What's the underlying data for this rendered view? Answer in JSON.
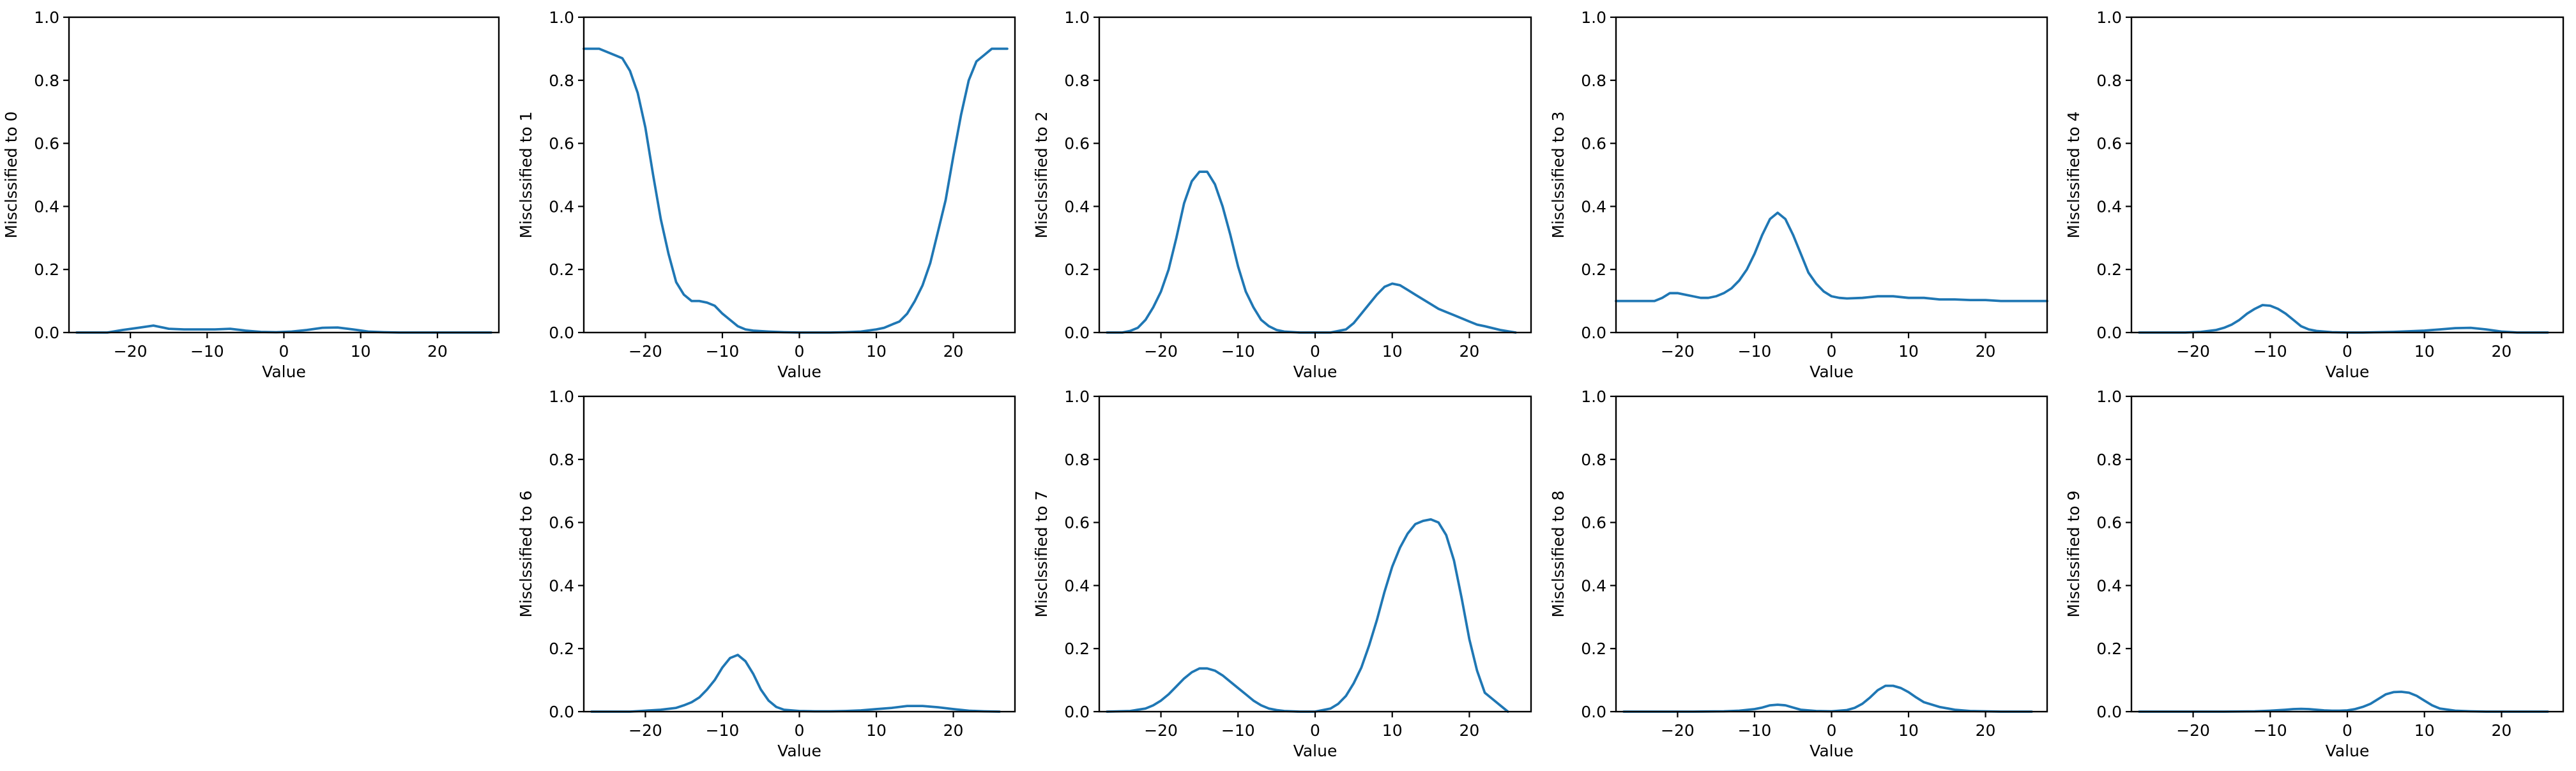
{
  "colors": {
    "series": "#1f77b4",
    "axis": "#000000",
    "background": "#ffffff"
  },
  "chart_data": [
    {
      "type": "line",
      "title": "",
      "xlabel": "Value",
      "ylabel": "Misclssified to 0",
      "xlim": [
        -28,
        28
      ],
      "ylim": [
        0,
        1
      ],
      "x_ticks": [
        -20,
        -10,
        0,
        10,
        20
      ],
      "y_ticks": [
        0.0,
        0.2,
        0.4,
        0.6,
        0.8,
        1.0
      ],
      "grid": false,
      "series": [
        {
          "x": [
            -27,
            -25,
            -23,
            -21,
            -19,
            -17,
            -15,
            -13,
            -11,
            -9,
            -7,
            -5,
            -3,
            -1,
            1,
            3,
            5,
            7,
            9,
            11,
            13,
            15,
            17,
            19,
            21,
            23,
            25,
            27
          ],
          "y": [
            0,
            0,
            0,
            0.008,
            0.015,
            0.022,
            0.012,
            0.01,
            0.01,
            0.01,
            0.012,
            0.006,
            0.002,
            0.001,
            0.003,
            0.008,
            0.015,
            0.016,
            0.01,
            0.003,
            0.001,
            0,
            0,
            0,
            0,
            0,
            0,
            0
          ]
        }
      ]
    },
    {
      "type": "line",
      "title": "",
      "xlabel": "Value",
      "ylabel": "Misclssified to 1",
      "xlim": [
        -28,
        28
      ],
      "ylim": [
        0,
        1
      ],
      "x_ticks": [
        -20,
        -10,
        0,
        10,
        20
      ],
      "y_ticks": [
        0.0,
        0.2,
        0.4,
        0.6,
        0.8,
        1.0
      ],
      "grid": false,
      "series": [
        {
          "x": [
            -28,
            -26,
            -24,
            -23,
            -22,
            -21,
            -20,
            -19,
            -18,
            -17,
            -16,
            -15,
            -14,
            -13,
            -12,
            -11,
            -10,
            -9,
            -8,
            -7,
            -6,
            -4,
            -2,
            0,
            2,
            4,
            6,
            8,
            10,
            11,
            12,
            13,
            14,
            15,
            16,
            17,
            18,
            19,
            20,
            21,
            22,
            23,
            24,
            25,
            26,
            27
          ],
          "y": [
            0.9,
            0.9,
            0.88,
            0.87,
            0.83,
            0.76,
            0.65,
            0.5,
            0.36,
            0.25,
            0.16,
            0.12,
            0.1,
            0.1,
            0.095,
            0.085,
            0.06,
            0.04,
            0.02,
            0.01,
            0.006,
            0.003,
            0.001,
            0,
            0,
            0,
            0.001,
            0.003,
            0.01,
            0.015,
            0.025,
            0.035,
            0.06,
            0.1,
            0.15,
            0.22,
            0.32,
            0.42,
            0.56,
            0.69,
            0.8,
            0.86,
            0.88,
            0.9,
            0.9,
            0.9
          ]
        }
      ]
    },
    {
      "type": "line",
      "title": "",
      "xlabel": "Value",
      "ylabel": "Misclssified to 2",
      "xlim": [
        -28,
        28
      ],
      "ylim": [
        0,
        1
      ],
      "x_ticks": [
        -20,
        -10,
        0,
        10,
        20
      ],
      "y_ticks": [
        0.0,
        0.2,
        0.4,
        0.6,
        0.8,
        1.0
      ],
      "grid": false,
      "series": [
        {
          "x": [
            -27,
            -25,
            -24,
            -23,
            -22,
            -21,
            -20,
            -19,
            -18,
            -17,
            -16,
            -15,
            -14,
            -13,
            -12,
            -11,
            -10,
            -9,
            -8,
            -7,
            -6,
            -5,
            -4,
            -2,
            0,
            2,
            4,
            5,
            6,
            7,
            8,
            9,
            10,
            11,
            12,
            13,
            14,
            15,
            16,
            17,
            18,
            19,
            20,
            21,
            22,
            24,
            26
          ],
          "y": [
            0,
            0,
            0.005,
            0.015,
            0.04,
            0.08,
            0.13,
            0.2,
            0.3,
            0.41,
            0.48,
            0.51,
            0.51,
            0.47,
            0.4,
            0.31,
            0.21,
            0.13,
            0.08,
            0.04,
            0.02,
            0.008,
            0.003,
            0,
            0,
            0,
            0.01,
            0.03,
            0.06,
            0.09,
            0.12,
            0.145,
            0.155,
            0.15,
            0.135,
            0.12,
            0.105,
            0.09,
            0.075,
            0.065,
            0.055,
            0.045,
            0.035,
            0.025,
            0.02,
            0.008,
            0
          ]
        }
      ]
    },
    {
      "type": "line",
      "title": "",
      "xlabel": "Value",
      "ylabel": "Misclssified to 3",
      "xlim": [
        -28,
        28
      ],
      "ylim": [
        0,
        1
      ],
      "x_ticks": [
        -20,
        -10,
        0,
        10,
        20
      ],
      "y_ticks": [
        0.0,
        0.2,
        0.4,
        0.6,
        0.8,
        1.0
      ],
      "grid": false,
      "series": [
        {
          "x": [
            -28,
            -24,
            -23,
            -22,
            -21,
            -20,
            -19,
            -18,
            -17,
            -16,
            -15,
            -14,
            -13,
            -12,
            -11,
            -10,
            -9,
            -8,
            -7,
            -6,
            -5,
            -4,
            -3,
            -2,
            -1,
            0,
            1,
            2,
            4,
            6,
            8,
            10,
            12,
            14,
            16,
            18,
            20,
            22,
            24,
            26,
            28
          ],
          "y": [
            0.1,
            0.1,
            0.1,
            0.11,
            0.125,
            0.125,
            0.12,
            0.115,
            0.11,
            0.11,
            0.115,
            0.125,
            0.14,
            0.165,
            0.2,
            0.25,
            0.31,
            0.36,
            0.38,
            0.36,
            0.31,
            0.25,
            0.19,
            0.155,
            0.13,
            0.115,
            0.11,
            0.108,
            0.11,
            0.115,
            0.115,
            0.11,
            0.11,
            0.105,
            0.105,
            0.103,
            0.103,
            0.1,
            0.1,
            0.1,
            0.1
          ]
        }
      ]
    },
    {
      "type": "line",
      "title": "",
      "xlabel": "Value",
      "ylabel": "Misclssified to 4",
      "xlim": [
        -28,
        28
      ],
      "ylim": [
        0,
        1
      ],
      "x_ticks": [
        -20,
        -10,
        0,
        10,
        20
      ],
      "y_ticks": [
        0.0,
        0.2,
        0.4,
        0.6,
        0.8,
        1.0
      ],
      "grid": false,
      "series": [
        {
          "x": [
            -27,
            -21,
            -19,
            -17,
            -16,
            -15,
            -14,
            -13,
            -12,
            -11,
            -10,
            -9,
            -8,
            -7,
            -6,
            -5,
            -4,
            -2,
            0,
            2,
            4,
            6,
            8,
            10,
            12,
            14,
            16,
            18,
            20,
            22,
            26
          ],
          "y": [
            0,
            0,
            0.002,
            0.008,
            0.015,
            0.025,
            0.04,
            0.06,
            0.075,
            0.087,
            0.085,
            0.075,
            0.06,
            0.04,
            0.02,
            0.01,
            0.005,
            0.001,
            0,
            0,
            0.001,
            0.002,
            0.004,
            0.006,
            0.01,
            0.014,
            0.015,
            0.01,
            0.003,
            0,
            0
          ]
        }
      ]
    },
    {
      "type": "line",
      "title": "",
      "xlabel": "Value",
      "ylabel": "Misclssified to 6",
      "xlim": [
        -28,
        28
      ],
      "ylim": [
        0,
        1
      ],
      "x_ticks": [
        -20,
        -10,
        0,
        10,
        20
      ],
      "y_ticks": [
        0.0,
        0.2,
        0.4,
        0.6,
        0.8,
        1.0
      ],
      "grid": false,
      "series": [
        {
          "x": [
            -27,
            -22,
            -20,
            -18,
            -16,
            -15,
            -14,
            -13,
            -12,
            -11,
            -10,
            -9,
            -8,
            -7,
            -6,
            -5,
            -4,
            -3,
            -2,
            0,
            2,
            4,
            6,
            8,
            10,
            12,
            14,
            16,
            18,
            20,
            22,
            24,
            26
          ],
          "y": [
            0,
            0,
            0.003,
            0.006,
            0.012,
            0.02,
            0.03,
            0.045,
            0.07,
            0.1,
            0.14,
            0.17,
            0.18,
            0.16,
            0.12,
            0.07,
            0.035,
            0.015,
            0.006,
            0.002,
            0.001,
            0.001,
            0.002,
            0.004,
            0.008,
            0.012,
            0.018,
            0.018,
            0.014,
            0.008,
            0.003,
            0.001,
            0
          ]
        }
      ]
    },
    {
      "type": "line",
      "title": "",
      "xlabel": "Value",
      "ylabel": "Misclssified to 7",
      "xlim": [
        -28,
        28
      ],
      "ylim": [
        0,
        1
      ],
      "x_ticks": [
        -20,
        -10,
        0,
        10,
        20
      ],
      "y_ticks": [
        0.0,
        0.2,
        0.4,
        0.6,
        0.8,
        1.0
      ],
      "grid": false,
      "series": [
        {
          "x": [
            -27,
            -24,
            -22,
            -21,
            -20,
            -19,
            -18,
            -17,
            -16,
            -15,
            -14,
            -13,
            -12,
            -11,
            -10,
            -9,
            -8,
            -7,
            -6,
            -5,
            -4,
            -2,
            0,
            2,
            3,
            4,
            5,
            6,
            7,
            8,
            9,
            10,
            11,
            12,
            13,
            14,
            15,
            16,
            17,
            18,
            19,
            20,
            21,
            22,
            23,
            24,
            25
          ],
          "y": [
            0,
            0.002,
            0.01,
            0.02,
            0.035,
            0.055,
            0.08,
            0.105,
            0.125,
            0.137,
            0.137,
            0.13,
            0.115,
            0.095,
            0.075,
            0.055,
            0.035,
            0.02,
            0.01,
            0.005,
            0.002,
            0,
            0,
            0.01,
            0.025,
            0.05,
            0.09,
            0.14,
            0.21,
            0.29,
            0.38,
            0.46,
            0.52,
            0.565,
            0.595,
            0.605,
            0.61,
            0.6,
            0.56,
            0.48,
            0.36,
            0.23,
            0.13,
            0.06,
            0.04,
            0.02,
            0
          ]
        }
      ]
    },
    {
      "type": "line",
      "title": "",
      "xlabel": "Value",
      "ylabel": "Misclssified to 8",
      "xlim": [
        -28,
        28
      ],
      "ylim": [
        0,
        1
      ],
      "x_ticks": [
        -20,
        -10,
        0,
        10,
        20
      ],
      "y_ticks": [
        0.0,
        0.2,
        0.4,
        0.6,
        0.8,
        1.0
      ],
      "grid": false,
      "series": [
        {
          "x": [
            -27,
            -18,
            -14,
            -12,
            -10,
            -9,
            -8,
            -7,
            -6,
            -5,
            -4,
            -2,
            0,
            2,
            3,
            4,
            5,
            6,
            7,
            8,
            9,
            10,
            11,
            12,
            14,
            16,
            18,
            20,
            22,
            26
          ],
          "y": [
            0,
            0,
            0.001,
            0.003,
            0.008,
            0.013,
            0.02,
            0.022,
            0.02,
            0.013,
            0.006,
            0.002,
            0.001,
            0.005,
            0.012,
            0.025,
            0.045,
            0.068,
            0.082,
            0.082,
            0.075,
            0.062,
            0.045,
            0.03,
            0.015,
            0.006,
            0.002,
            0.001,
            0,
            0
          ]
        }
      ]
    },
    {
      "type": "line",
      "title": "",
      "xlabel": "Value",
      "ylabel": "Misclssified to 9",
      "xlim": [
        -28,
        28
      ],
      "ylim": [
        0,
        1
      ],
      "x_ticks": [
        -20,
        -10,
        0,
        10,
        20
      ],
      "y_ticks": [
        0.0,
        0.2,
        0.4,
        0.6,
        0.8,
        1.0
      ],
      "grid": false,
      "series": [
        {
          "x": [
            -27,
            -16,
            -12,
            -10,
            -8,
            -7,
            -6,
            -5,
            -4,
            -3,
            -2,
            -1,
            0,
            1,
            2,
            3,
            4,
            5,
            6,
            7,
            8,
            9,
            10,
            11,
            12,
            14,
            16,
            18,
            22,
            26
          ],
          "y": [
            0,
            0,
            0.001,
            0.003,
            0.006,
            0.008,
            0.009,
            0.008,
            0.006,
            0.004,
            0.003,
            0.003,
            0.004,
            0.008,
            0.015,
            0.025,
            0.04,
            0.055,
            0.062,
            0.063,
            0.06,
            0.05,
            0.035,
            0.02,
            0.01,
            0.003,
            0.001,
            0,
            0,
            0
          ]
        }
      ]
    }
  ]
}
